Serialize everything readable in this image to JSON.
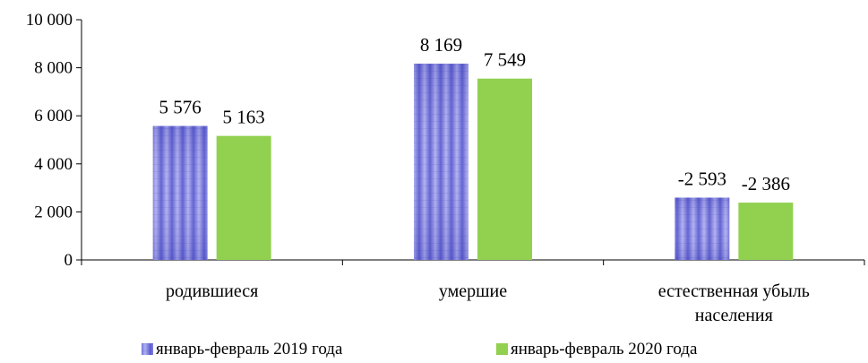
{
  "chart_data": {
    "type": "bar",
    "categories": [
      [
        "родившиеся"
      ],
      [
        "умершие"
      ],
      [
        "естественная  убыль",
        "населения"
      ]
    ],
    "series": [
      {
        "name": "январь-февраль 2019 года",
        "color": "#7b7be0",
        "values": [
          5576,
          8169,
          2593
        ],
        "labels": [
          "5 576",
          "8 169",
          "-2 593"
        ]
      },
      {
        "name": "январь-февраль 2020 года",
        "color": "#92d050",
        "values": [
          5163,
          7549,
          2386
        ],
        "labels": [
          "5 163",
          "7 549",
          "-2 386"
        ]
      }
    ],
    "yticks": [
      0,
      2000,
      4000,
      6000,
      8000,
      10000
    ],
    "ytick_labels": [
      "0",
      "2 000",
      "4 000",
      "6 000",
      "8 000",
      "10 000"
    ],
    "ylim": [
      0,
      10000
    ],
    "grid": false,
    "legend_position": "bottom"
  }
}
